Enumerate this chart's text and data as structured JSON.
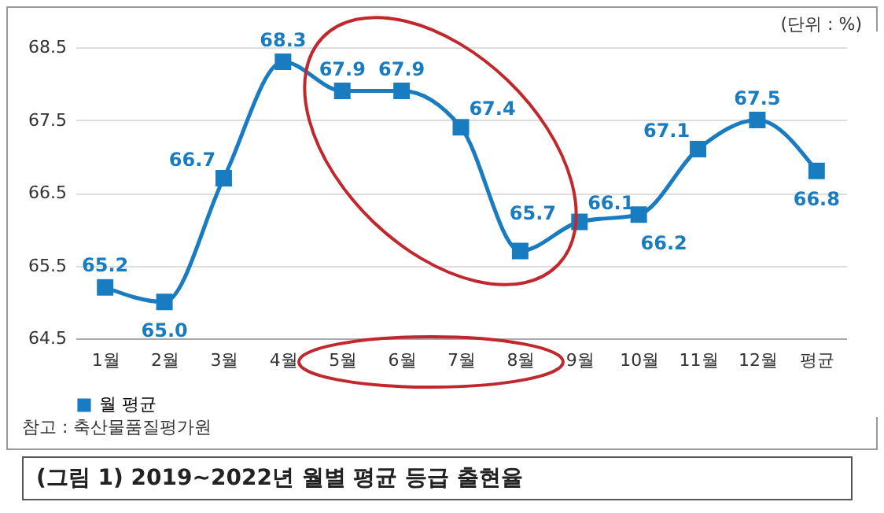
{
  "chart_data": {
    "type": "line",
    "title": "(그림 1) 2019~2022년 월별 평균 등급 출현율",
    "annotations": [
      "(단위 : %)",
      "참고 : 축산물품질평가원"
    ],
    "categories": [
      "1월",
      "2월",
      "3월",
      "4월",
      "5월",
      "6월",
      "7월",
      "8월",
      "9월",
      "10월",
      "11월",
      "12월",
      "평균"
    ],
    "series": [
      {
        "name": "월 평균",
        "color": "#1a7cc0",
        "values": [
          65.2,
          65.0,
          66.7,
          68.3,
          67.9,
          67.9,
          67.4,
          65.7,
          66.1,
          66.2,
          67.1,
          67.5,
          66.8
        ],
        "value_labels": [
          "65.2",
          "65.0",
          "66.7",
          "68.3",
          "67.9",
          "67.9",
          "67.4",
          "65.7",
          "66.1",
          "66.2",
          "67.1",
          "67.5",
          "66.8"
        ]
      }
    ],
    "ylim": [
      64.5,
      68.5
    ],
    "yticks": [
      64.5,
      65.5,
      66.5,
      67.5,
      68.5
    ],
    "grid": "y",
    "marker": "square",
    "legend": "bottom"
  }
}
